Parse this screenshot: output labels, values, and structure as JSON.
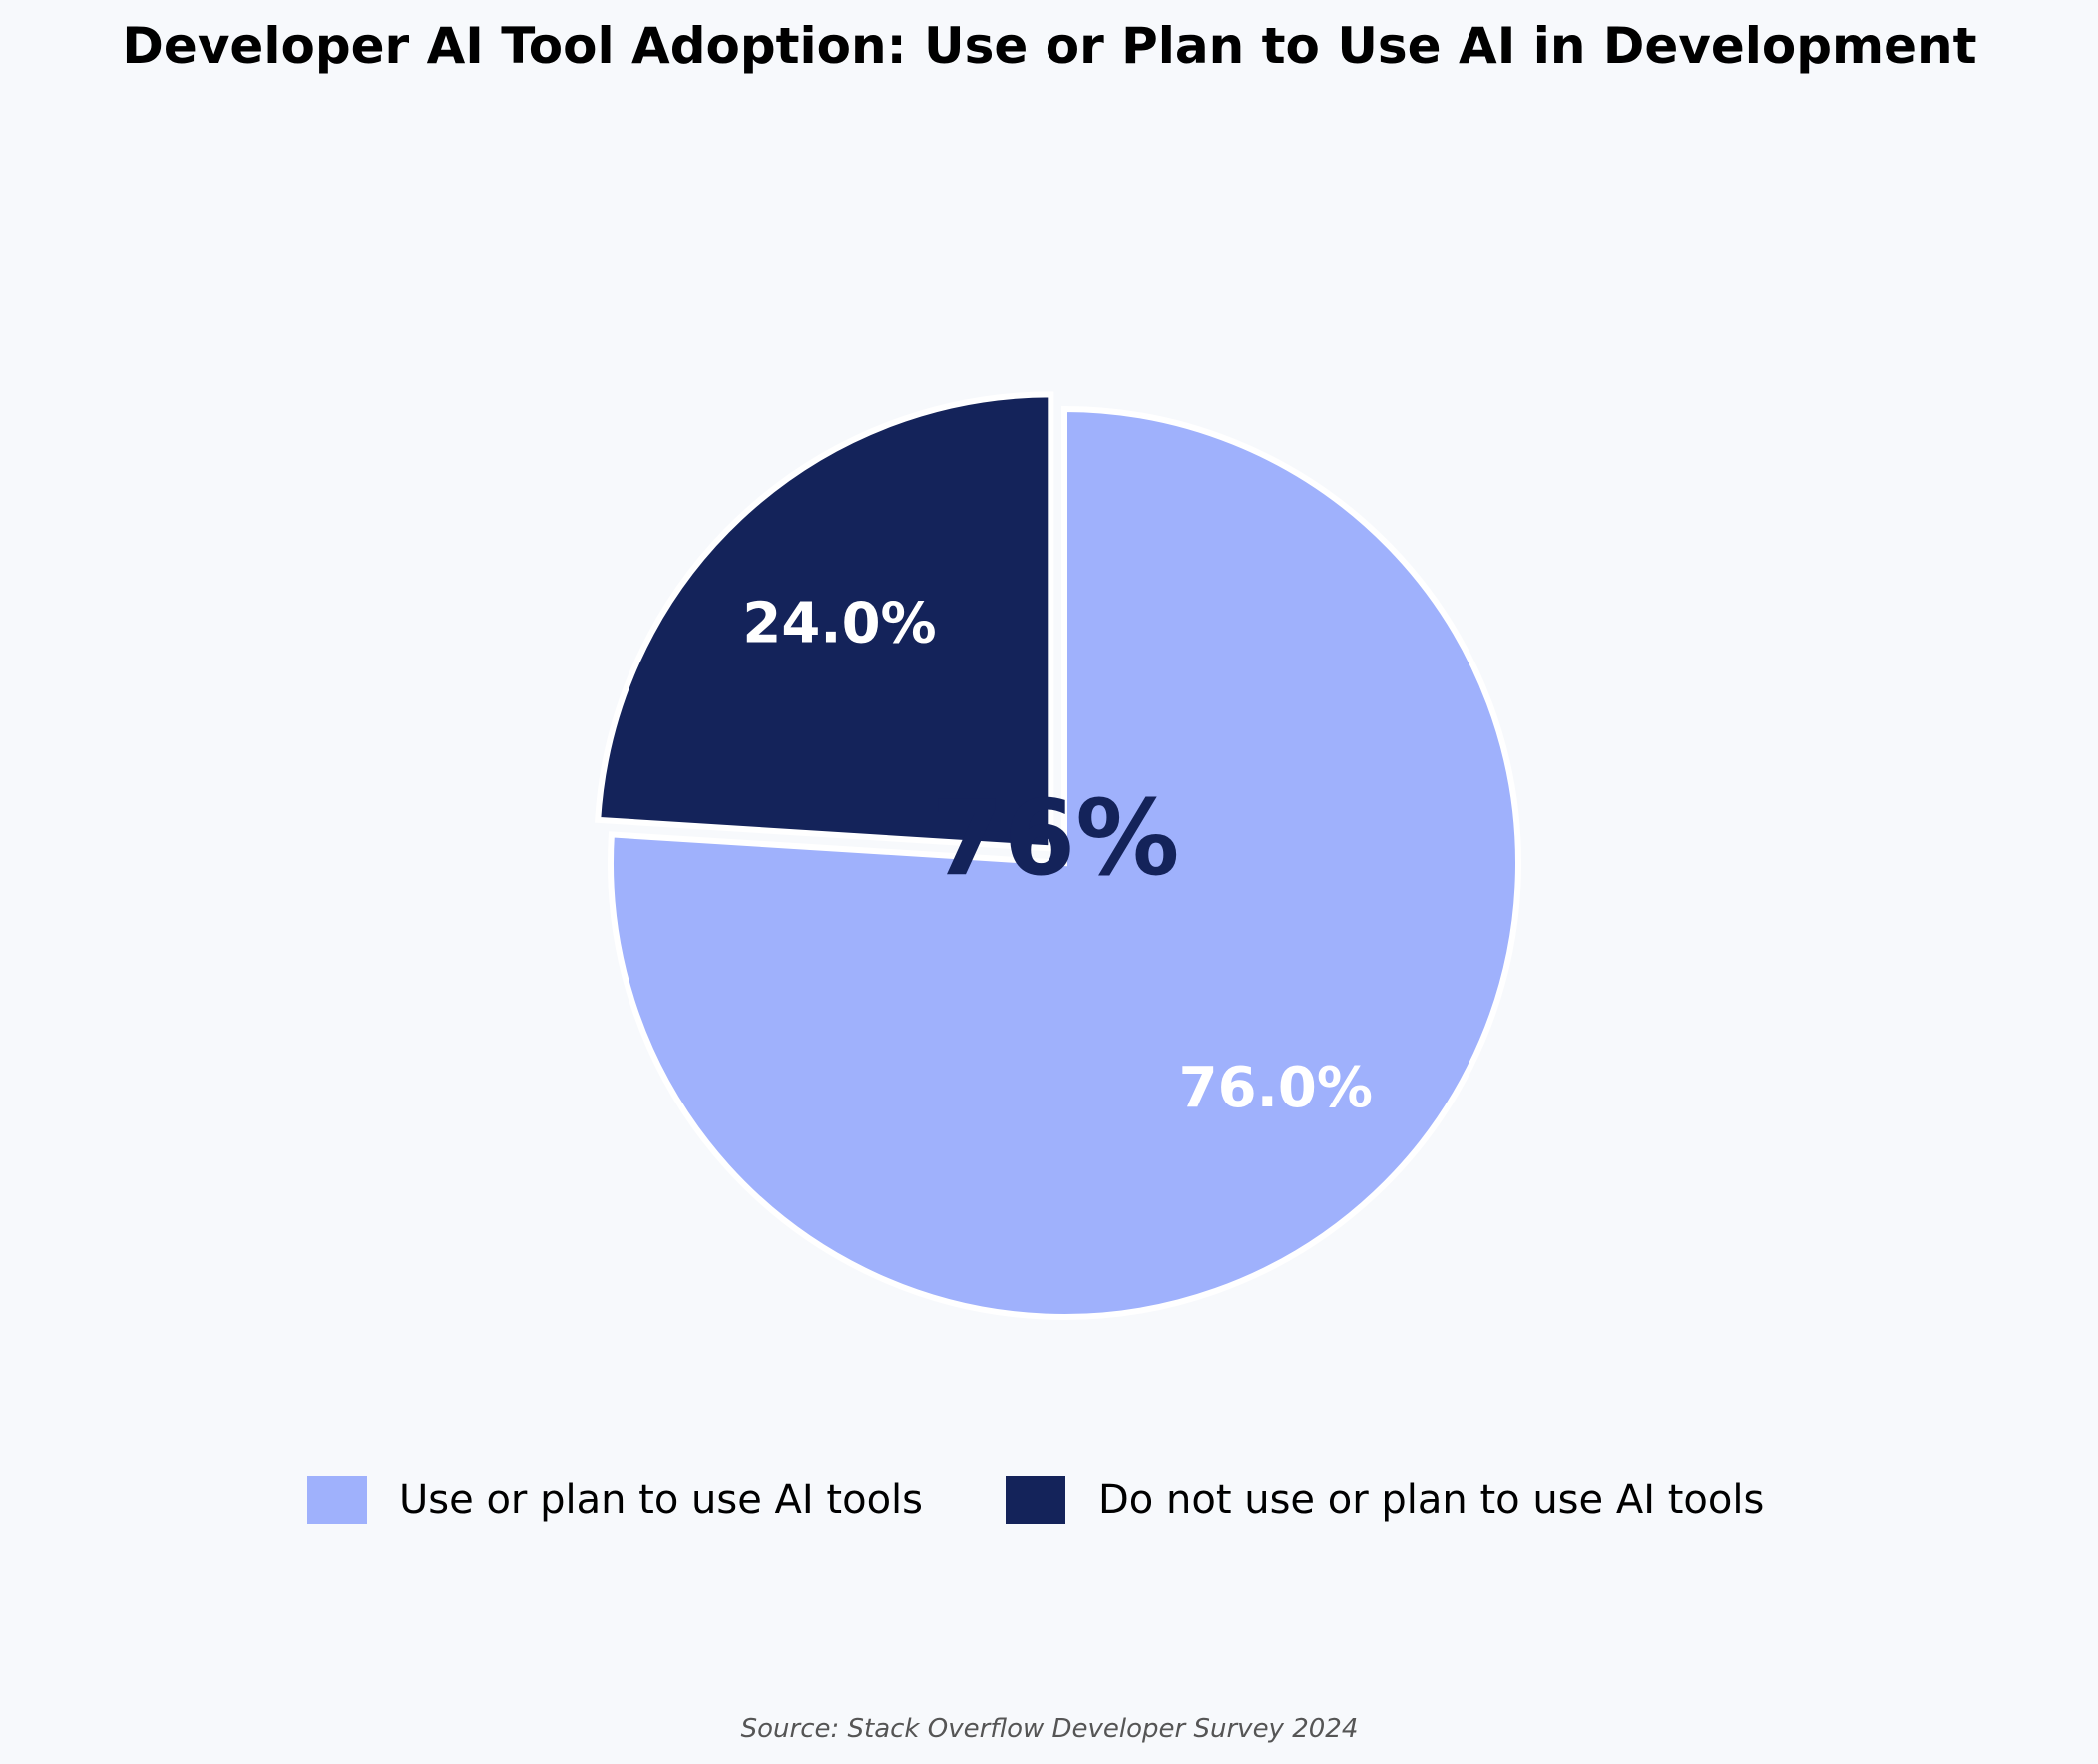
{
  "chart_data": {
    "type": "pie",
    "title": "Developer AI Tool Adoption: Use or Plan to Use AI in Development",
    "categories": [
      "Use or plan to use AI tools",
      "Do not use or plan to use AI tools"
    ],
    "values": [
      76.0,
      24.0
    ],
    "value_labels": [
      "76.0%",
      "24.0%"
    ],
    "colors": [
      "#9FB1FC",
      "#14235A"
    ],
    "exploded": [
      false,
      true
    ],
    "start_angle_deg": 90,
    "direction": "clockwise",
    "center_label": "76%",
    "center_label_color": "#14235A",
    "legend_position": "bottom",
    "source_note": "Source: Stack Overflow Developer Survey 2024"
  }
}
